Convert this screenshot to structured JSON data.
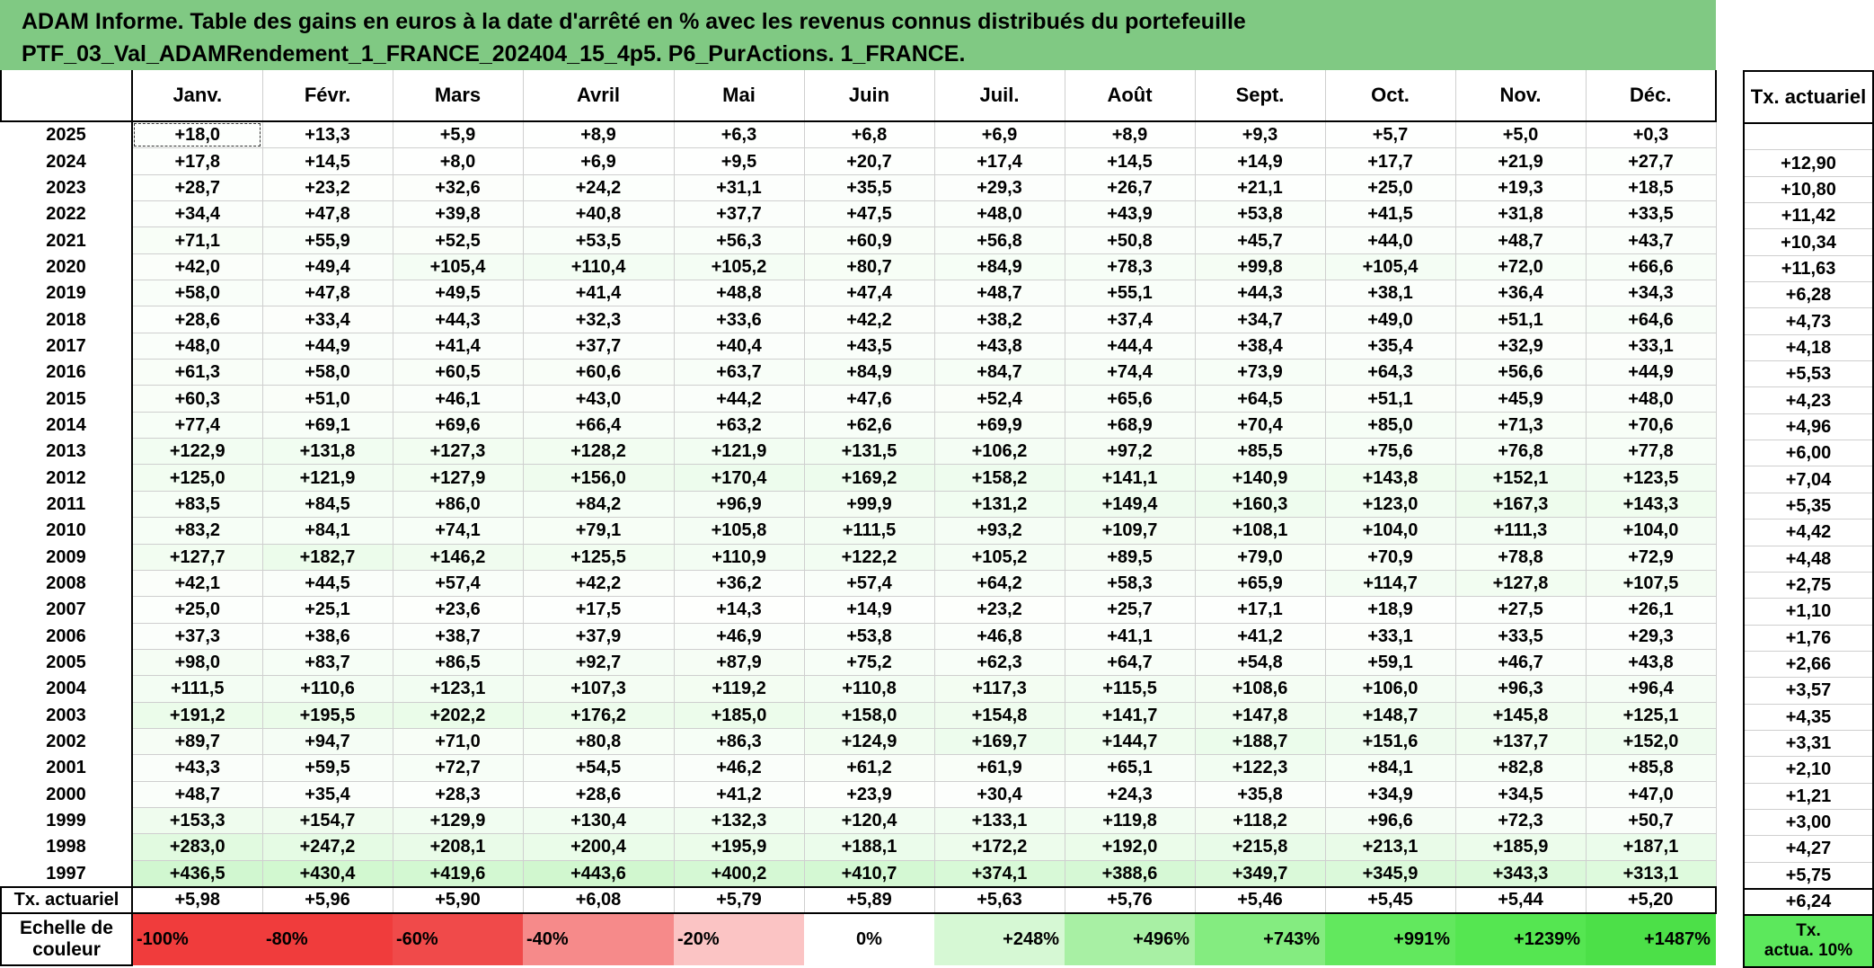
{
  "title": {
    "line1": "ADAM Informe. Table des gains en euros à la date d'arrêté en % avec les revenus connus distribués du portefeuille",
    "line2": "PTF_03_Val_ADAMRendement_1_FRANCE_202404_15_4p5. P6_PurActions. 1_FRANCE."
  },
  "months": [
    "Janv.",
    "Févr.",
    "Mars",
    "Avril",
    "Mai",
    "Juin",
    "Juil.",
    "Août",
    "Sept.",
    "Oct.",
    "Nov.",
    "Déc."
  ],
  "actuarial_header": "Tx. actuariel",
  "rows": [
    {
      "year": "2025",
      "values": [
        "+18,0",
        "+13,3",
        "+5,9",
        "+8,9",
        "+6,3",
        "+6,8",
        "+6,9",
        "+8,9",
        "+9,3",
        "+5,7",
        "+5,0",
        "+0,3"
      ],
      "actuarial": ""
    },
    {
      "year": "2024",
      "values": [
        "+17,8",
        "+14,5",
        "+8,0",
        "+6,9",
        "+9,5",
        "+20,7",
        "+17,4",
        "+14,5",
        "+14,9",
        "+17,7",
        "+21,9",
        "+27,7"
      ],
      "actuarial": "+12,90"
    },
    {
      "year": "2023",
      "values": [
        "+28,7",
        "+23,2",
        "+32,6",
        "+24,2",
        "+31,1",
        "+35,5",
        "+29,3",
        "+26,7",
        "+21,1",
        "+25,0",
        "+19,3",
        "+18,5"
      ],
      "actuarial": "+10,80"
    },
    {
      "year": "2022",
      "values": [
        "+34,4",
        "+47,8",
        "+39,8",
        "+40,8",
        "+37,7",
        "+47,5",
        "+48,0",
        "+43,9",
        "+53,8",
        "+41,5",
        "+31,8",
        "+33,5"
      ],
      "actuarial": "+11,42"
    },
    {
      "year": "2021",
      "values": [
        "+71,1",
        "+55,9",
        "+52,5",
        "+53,5",
        "+56,3",
        "+60,9",
        "+56,8",
        "+50,8",
        "+45,7",
        "+44,0",
        "+48,7",
        "+43,7"
      ],
      "actuarial": "+10,34"
    },
    {
      "year": "2020",
      "values": [
        "+42,0",
        "+49,4",
        "+105,4",
        "+110,4",
        "+105,2",
        "+80,7",
        "+84,9",
        "+78,3",
        "+99,8",
        "+105,4",
        "+72,0",
        "+66,6"
      ],
      "actuarial": "+11,63"
    },
    {
      "year": "2019",
      "values": [
        "+58,0",
        "+47,8",
        "+49,5",
        "+41,4",
        "+48,8",
        "+47,4",
        "+48,7",
        "+55,1",
        "+44,3",
        "+38,1",
        "+36,4",
        "+34,3"
      ],
      "actuarial": "+6,28"
    },
    {
      "year": "2018",
      "values": [
        "+28,6",
        "+33,4",
        "+44,3",
        "+32,3",
        "+33,6",
        "+42,2",
        "+38,2",
        "+37,4",
        "+34,7",
        "+49,0",
        "+51,1",
        "+64,6"
      ],
      "actuarial": "+4,73"
    },
    {
      "year": "2017",
      "values": [
        "+48,0",
        "+44,9",
        "+41,4",
        "+37,7",
        "+40,4",
        "+43,5",
        "+43,8",
        "+44,4",
        "+38,4",
        "+35,4",
        "+32,9",
        "+33,1"
      ],
      "actuarial": "+4,18"
    },
    {
      "year": "2016",
      "values": [
        "+61,3",
        "+58,0",
        "+60,5",
        "+60,6",
        "+63,7",
        "+84,9",
        "+84,7",
        "+74,4",
        "+73,9",
        "+64,3",
        "+56,6",
        "+44,9"
      ],
      "actuarial": "+5,53"
    },
    {
      "year": "2015",
      "values": [
        "+60,3",
        "+51,0",
        "+46,1",
        "+43,0",
        "+44,2",
        "+47,6",
        "+52,4",
        "+65,6",
        "+64,5",
        "+51,1",
        "+45,9",
        "+48,0"
      ],
      "actuarial": "+4,23"
    },
    {
      "year": "2014",
      "values": [
        "+77,4",
        "+69,1",
        "+69,6",
        "+66,4",
        "+63,2",
        "+62,6",
        "+69,9",
        "+68,9",
        "+70,4",
        "+85,0",
        "+71,3",
        "+70,6"
      ],
      "actuarial": "+4,96"
    },
    {
      "year": "2013",
      "values": [
        "+122,9",
        "+131,8",
        "+127,3",
        "+128,2",
        "+121,9",
        "+131,5",
        "+106,2",
        "+97,2",
        "+85,5",
        "+75,6",
        "+76,8",
        "+77,8"
      ],
      "actuarial": "+6,00"
    },
    {
      "year": "2012",
      "values": [
        "+125,0",
        "+121,9",
        "+127,9",
        "+156,0",
        "+170,4",
        "+169,2",
        "+158,2",
        "+141,1",
        "+140,9",
        "+143,8",
        "+152,1",
        "+123,5"
      ],
      "actuarial": "+7,04"
    },
    {
      "year": "2011",
      "values": [
        "+83,5",
        "+84,5",
        "+86,0",
        "+84,2",
        "+96,9",
        "+99,9",
        "+131,2",
        "+149,4",
        "+160,3",
        "+123,0",
        "+167,3",
        "+143,3"
      ],
      "actuarial": "+5,35"
    },
    {
      "year": "2010",
      "values": [
        "+83,2",
        "+84,1",
        "+74,1",
        "+79,1",
        "+105,8",
        "+111,5",
        "+93,2",
        "+109,7",
        "+108,1",
        "+104,0",
        "+111,3",
        "+104,0"
      ],
      "actuarial": "+4,42"
    },
    {
      "year": "2009",
      "values": [
        "+127,7",
        "+182,7",
        "+146,2",
        "+125,5",
        "+110,9",
        "+122,2",
        "+105,2",
        "+89,5",
        "+79,0",
        "+70,9",
        "+78,8",
        "+72,9"
      ],
      "actuarial": "+4,48"
    },
    {
      "year": "2008",
      "values": [
        "+42,1",
        "+44,5",
        "+57,4",
        "+42,2",
        "+36,2",
        "+57,4",
        "+64,2",
        "+58,3",
        "+65,9",
        "+114,7",
        "+127,8",
        "+107,5"
      ],
      "actuarial": "+2,75"
    },
    {
      "year": "2007",
      "values": [
        "+25,0",
        "+25,1",
        "+23,6",
        "+17,5",
        "+14,3",
        "+14,9",
        "+23,2",
        "+25,7",
        "+17,1",
        "+18,9",
        "+27,5",
        "+26,1"
      ],
      "actuarial": "+1,10"
    },
    {
      "year": "2006",
      "values": [
        "+37,3",
        "+38,6",
        "+38,7",
        "+37,9",
        "+46,9",
        "+53,8",
        "+46,8",
        "+41,1",
        "+41,2",
        "+33,1",
        "+33,5",
        "+29,3"
      ],
      "actuarial": "+1,76"
    },
    {
      "year": "2005",
      "values": [
        "+98,0",
        "+83,7",
        "+86,5",
        "+92,7",
        "+87,9",
        "+75,2",
        "+62,3",
        "+64,7",
        "+54,8",
        "+59,1",
        "+46,7",
        "+43,8"
      ],
      "actuarial": "+2,66"
    },
    {
      "year": "2004",
      "values": [
        "+111,5",
        "+110,6",
        "+123,1",
        "+107,3",
        "+119,2",
        "+110,8",
        "+117,3",
        "+115,5",
        "+108,6",
        "+106,0",
        "+96,3",
        "+96,4"
      ],
      "actuarial": "+3,57"
    },
    {
      "year": "2003",
      "values": [
        "+191,2",
        "+195,5",
        "+202,2",
        "+176,2",
        "+185,0",
        "+158,0",
        "+154,8",
        "+141,7",
        "+147,8",
        "+148,7",
        "+145,8",
        "+125,1"
      ],
      "actuarial": "+4,35"
    },
    {
      "year": "2002",
      "values": [
        "+89,7",
        "+94,7",
        "+71,0",
        "+80,8",
        "+86,3",
        "+124,9",
        "+169,7",
        "+144,7",
        "+188,7",
        "+151,6",
        "+137,7",
        "+152,0"
      ],
      "actuarial": "+3,31"
    },
    {
      "year": "2001",
      "values": [
        "+43,3",
        "+59,5",
        "+72,7",
        "+54,5",
        "+46,2",
        "+61,2",
        "+61,9",
        "+65,1",
        "+122,3",
        "+84,1",
        "+82,8",
        "+85,8"
      ],
      "actuarial": "+2,10"
    },
    {
      "year": "2000",
      "values": [
        "+48,7",
        "+35,4",
        "+28,3",
        "+28,6",
        "+41,2",
        "+23,9",
        "+30,4",
        "+24,3",
        "+35,8",
        "+34,9",
        "+34,5",
        "+47,0"
      ],
      "actuarial": "+1,21"
    },
    {
      "year": "1999",
      "values": [
        "+153,3",
        "+154,7",
        "+129,9",
        "+130,4",
        "+132,3",
        "+120,4",
        "+133,1",
        "+119,8",
        "+118,2",
        "+96,6",
        "+72,3",
        "+50,7"
      ],
      "actuarial": "+3,00"
    },
    {
      "year": "1998",
      "values": [
        "+283,0",
        "+247,2",
        "+208,1",
        "+200,4",
        "+195,9",
        "+188,1",
        "+172,2",
        "+192,0",
        "+215,8",
        "+213,1",
        "+185,9",
        "+187,1"
      ],
      "actuarial": "+4,27"
    },
    {
      "year": "1997",
      "values": [
        "+436,5",
        "+430,4",
        "+419,6",
        "+443,6",
        "+400,2",
        "+410,7",
        "+374,1",
        "+388,6",
        "+349,7",
        "+345,9",
        "+343,3",
        "+313,1"
      ],
      "actuarial": "+5,75"
    }
  ],
  "total_row": {
    "label": "Tx. actuariel",
    "values": [
      "+5,98",
      "+5,96",
      "+5,90",
      "+6,08",
      "+5,79",
      "+5,89",
      "+5,63",
      "+5,76",
      "+5,46",
      "+5,45",
      "+5,44",
      "+5,20"
    ],
    "actuarial": "+6,24"
  },
  "scale": {
    "label_line1": "Echelle de",
    "label_line2": "couleur",
    "items": [
      {
        "text": "-100%",
        "color": "#f03c3c",
        "align": "left"
      },
      {
        "text": "-80%",
        "color": "#f03c3c",
        "align": "left"
      },
      {
        "text": "-60%",
        "color": "#f04a4a",
        "align": "left"
      },
      {
        "text": "-40%",
        "color": "#f68a8a",
        "align": "left"
      },
      {
        "text": "-20%",
        "color": "#fbc4c4",
        "align": "left"
      },
      {
        "text": "0%",
        "color": "#ffffff",
        "align": "center"
      },
      {
        "text": "+248%",
        "color": "#d6f8d4",
        "align": "right"
      },
      {
        "text": "+496%",
        "color": "#a8f0a4",
        "align": "right"
      },
      {
        "text": "+743%",
        "color": "#84ec80",
        "align": "right"
      },
      {
        "text": "+991%",
        "color": "#62e85e",
        "align": "right"
      },
      {
        "text": "+1239%",
        "color": "#55e651",
        "align": "right"
      },
      {
        "text": "+1487%",
        "color": "#4ce048",
        "align": "right"
      }
    ],
    "act_line1": "Tx.",
    "act_line2": "actua. 10%"
  },
  "colors": {
    "header_bg": "#80c983",
    "positive_max": "#4ce048",
    "negative_max": "#f03c3c"
  }
}
